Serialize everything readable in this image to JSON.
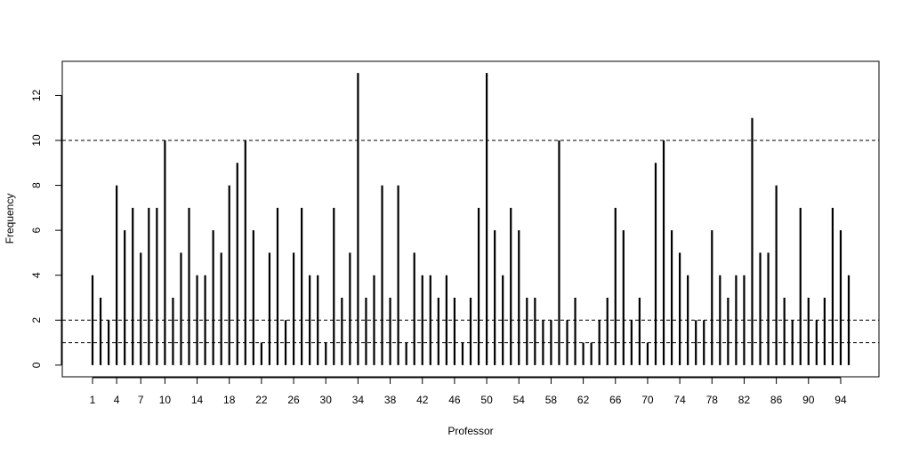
{
  "chart_data": {
    "type": "spike",
    "x_label": "Professor",
    "y_label": "Frequency",
    "x": [
      1,
      2,
      3,
      4,
      5,
      6,
      7,
      8,
      9,
      10,
      11,
      12,
      13,
      14,
      15,
      16,
      17,
      18,
      19,
      20,
      21,
      22,
      23,
      24,
      25,
      26,
      27,
      28,
      29,
      30,
      31,
      32,
      33,
      34,
      35,
      36,
      37,
      38,
      39,
      40,
      41,
      42,
      43,
      44,
      45,
      46,
      47,
      48,
      49,
      50,
      51,
      52,
      53,
      54,
      55,
      56,
      57,
      58,
      59,
      60,
      61,
      62,
      63,
      64,
      65,
      66,
      67,
      68,
      69,
      70,
      71,
      72,
      73,
      74,
      75,
      76,
      77,
      78,
      79,
      80,
      81,
      82,
      83,
      84,
      85,
      86,
      87,
      88,
      89,
      90,
      91,
      92,
      93,
      94,
      95
    ],
    "values": [
      4,
      3,
      2,
      8,
      6,
      7,
      5,
      7,
      7,
      10,
      3,
      5,
      7,
      4,
      4,
      6,
      5,
      8,
      9,
      10,
      6,
      1,
      5,
      7,
      2,
      5,
      7,
      4,
      4,
      1,
      7,
      3,
      5,
      13,
      3,
      4,
      8,
      3,
      8,
      1,
      5,
      4,
      4,
      3,
      4,
      3,
      1,
      3,
      7,
      13,
      6,
      4,
      7,
      6,
      3,
      3,
      2,
      2,
      10,
      2,
      3,
      1,
      1,
      2,
      3,
      7,
      6,
      2,
      3,
      1,
      9,
      10,
      6,
      5,
      4,
      2,
      2,
      6,
      4,
      3,
      4,
      4,
      11,
      5,
      5,
      8,
      3,
      2,
      7,
      3,
      2,
      3,
      7,
      6,
      4
    ],
    "color": "#000000",
    "reference_lines": [
      1,
      2,
      10
    ],
    "xlim": [
      -2.76,
      98.76
    ],
    "ylim": [
      -0.52,
      13.52
    ],
    "xticks": [
      1,
      4,
      7,
      10,
      14,
      18,
      22,
      26,
      30,
      34,
      38,
      42,
      46,
      50,
      54,
      58,
      62,
      66,
      70,
      74,
      78,
      82,
      86,
      90,
      94
    ],
    "yticks": [
      0,
      2,
      4,
      6,
      8,
      10,
      12
    ]
  }
}
